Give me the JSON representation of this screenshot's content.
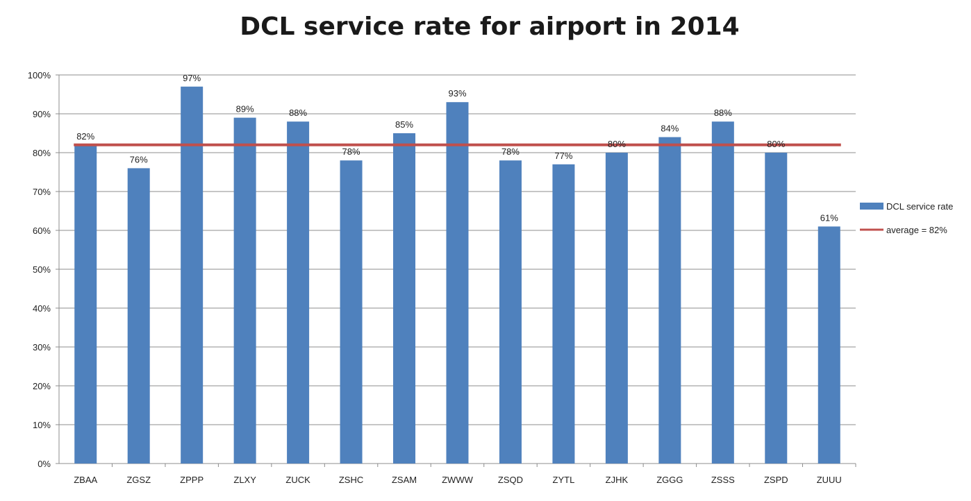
{
  "chart_data": {
    "type": "bar",
    "title": "DCL service rate for airport in 2014",
    "categories": [
      "ZBAA",
      "ZGSZ",
      "ZPPP",
      "ZLXY",
      "ZUCK",
      "ZSHC",
      "ZSAM",
      "ZWWW",
      "ZSQD",
      "ZYTL",
      "ZJHK",
      "ZGGG",
      "ZSSS",
      "ZSPD",
      "ZUUU"
    ],
    "series": [
      {
        "name": "DCL service rate",
        "type": "bar",
        "color": "#4f81bd",
        "values": [
          82,
          76,
          97,
          89,
          88,
          78,
          85,
          93,
          78,
          77,
          80,
          84,
          88,
          80,
          61
        ],
        "data_labels": [
          "82%",
          "76%",
          "97%",
          "89%",
          "88%",
          "78%",
          "85%",
          "93%",
          "78%",
          "77%",
          "80%",
          "84%",
          "88%",
          "80%",
          "61%"
        ]
      },
      {
        "name": "average = 82%",
        "type": "line",
        "color": "#c0504d",
        "value": 82
      }
    ],
    "ylim": [
      0,
      100
    ],
    "yticks": [
      0,
      10,
      20,
      30,
      40,
      50,
      60,
      70,
      80,
      90,
      100
    ],
    "ytick_labels": [
      "0%",
      "10%",
      "20%",
      "30%",
      "40%",
      "50%",
      "60%",
      "70%",
      "80%",
      "90%",
      "100%"
    ],
    "xlabel": "",
    "ylabel": "",
    "grid": true,
    "legend": "right"
  }
}
